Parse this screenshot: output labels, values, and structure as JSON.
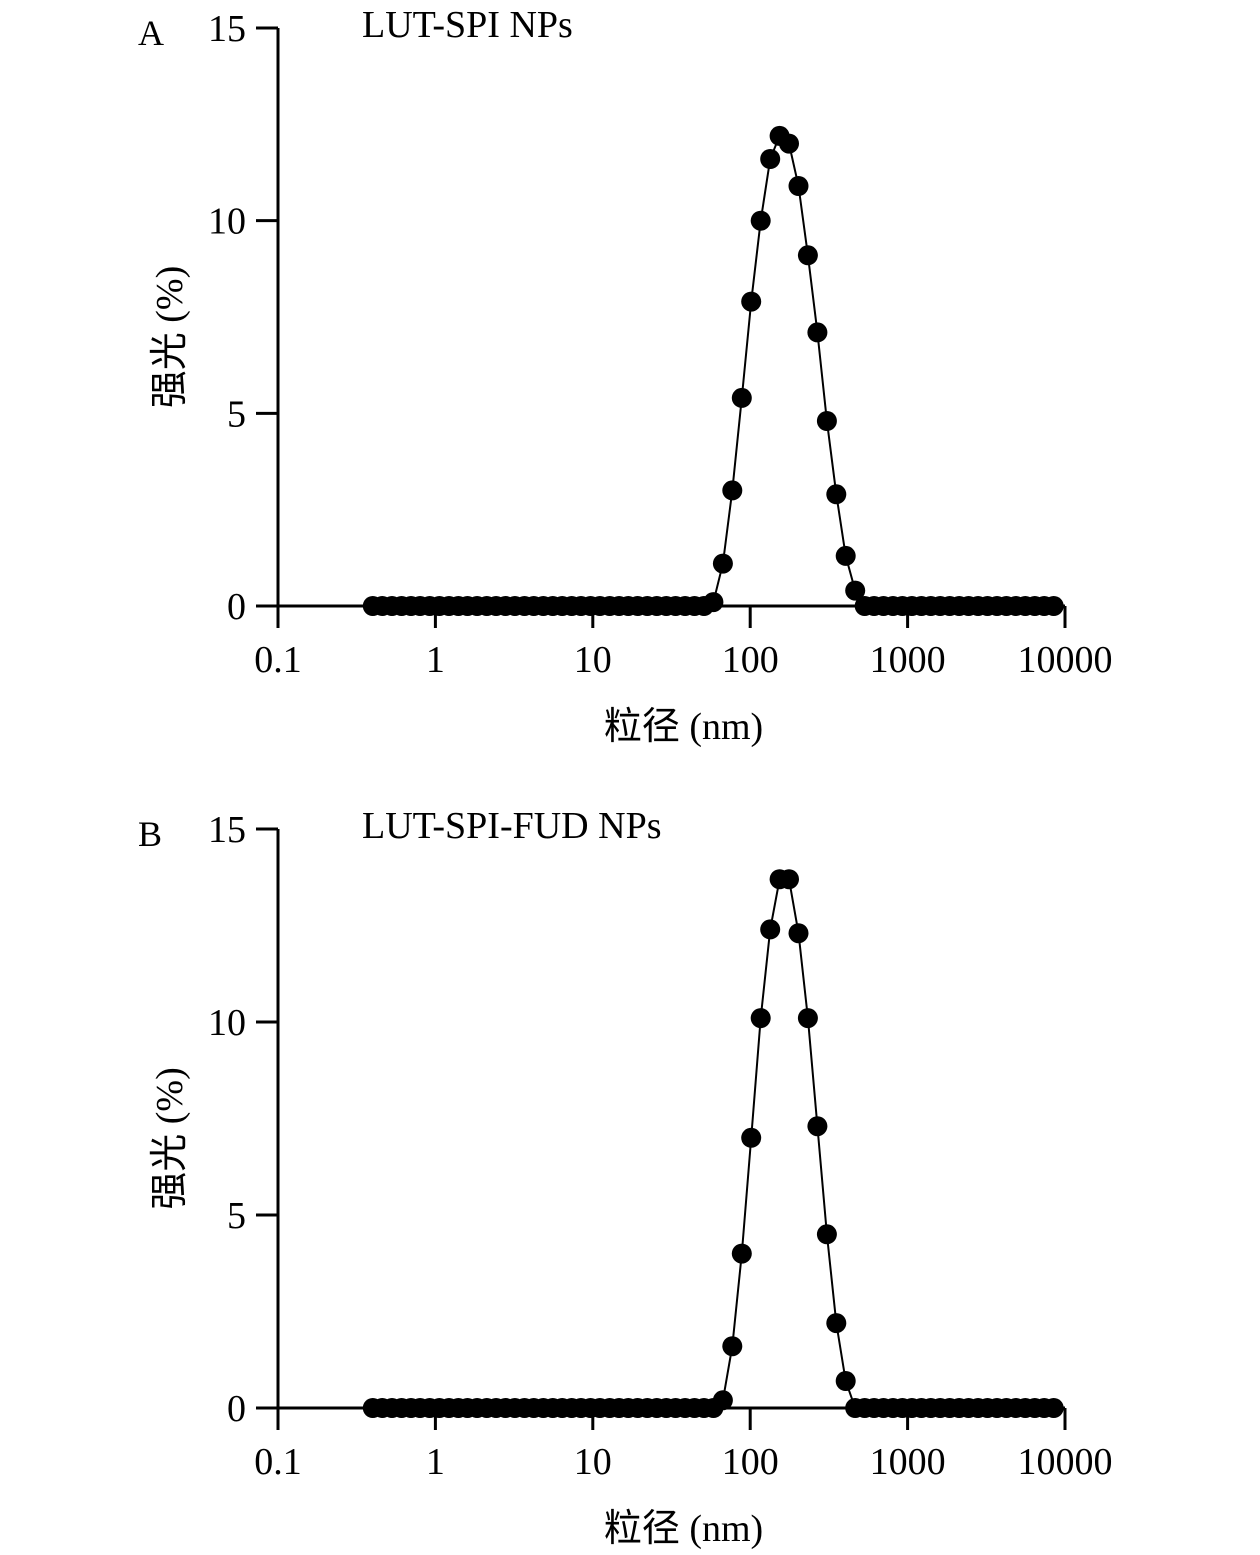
{
  "chart_data": [
    {
      "type": "scatter",
      "panel_label": "A",
      "title": "LUT-SPI NPs",
      "xlabel": "粒径 (nm)",
      "ylabel": "强光 (%)",
      "x_scale": "log",
      "xlim": [
        0.1,
        10000
      ],
      "ylim": [
        0,
        15
      ],
      "x_ticks": [
        0.1,
        1,
        10,
        100,
        1000,
        10000
      ],
      "x_tick_labels": [
        "0.1",
        "1",
        "10",
        "100",
        "1000",
        "10000"
      ],
      "y_ticks": [
        0,
        5,
        10,
        15
      ],
      "y_tick_labels": [
        "0",
        "5",
        "10",
        "15"
      ],
      "grid": false,
      "series": [
        {
          "x": [
            0.4,
            0.46,
            0.53,
            0.61,
            0.7,
            0.8,
            0.92,
            1.06,
            1.22,
            1.4,
            1.6,
            1.84,
            2.12,
            2.43,
            2.79,
            3.2,
            3.68,
            4.22,
            4.85,
            5.57,
            6.39,
            7.34,
            8.42,
            9.67,
            11.1,
            12.8,
            14.7,
            16.8,
            19.3,
            22.2,
            25.5,
            29.3,
            33.6,
            38.6,
            44.3,
            50.9,
            58.4,
            67.1,
            77.0,
            88.4,
            101.5,
            116.6,
            133.9,
            153.7,
            176.5,
            202.7,
            232.7,
            267.2,
            306.9,
            352.4,
            404.6,
            464.6,
            533.5,
            612.6,
            703.4,
            807.7,
            927.4,
            1065,
            1223,
            1404,
            1612,
            1851,
            2126,
            2441,
            2803,
            3219,
            3696,
            4244,
            4873,
            5596,
            6425,
            7378,
            8472
          ],
          "y": [
            0,
            0,
            0,
            0,
            0,
            0,
            0,
            0,
            0,
            0,
            0,
            0,
            0,
            0,
            0,
            0,
            0,
            0,
            0,
            0,
            0,
            0,
            0,
            0,
            0,
            0,
            0,
            0,
            0,
            0,
            0,
            0,
            0,
            0,
            0,
            0,
            0.1,
            1.1,
            3.0,
            5.4,
            7.9,
            10.0,
            11.6,
            12.2,
            12.0,
            10.9,
            9.1,
            7.1,
            4.8,
            2.9,
            1.3,
            0.4,
            0,
            0,
            0,
            0,
            0,
            0,
            0,
            0,
            0,
            0,
            0,
            0,
            0,
            0,
            0,
            0,
            0,
            0,
            0,
            0,
            0
          ]
        }
      ]
    },
    {
      "type": "scatter",
      "panel_label": "B",
      "title": "LUT-SPI-FUD NPs",
      "xlabel": "粒径 (nm)",
      "ylabel": "强光 (%)",
      "x_scale": "log",
      "xlim": [
        0.1,
        10000
      ],
      "ylim": [
        0,
        15
      ],
      "x_ticks": [
        0.1,
        1,
        10,
        100,
        1000,
        10000
      ],
      "x_tick_labels": [
        "0.1",
        "1",
        "10",
        "100",
        "1000",
        "10000"
      ],
      "y_ticks": [
        0,
        5,
        10,
        15
      ],
      "y_tick_labels": [
        "0",
        "5",
        "10",
        "15"
      ],
      "grid": false,
      "series": [
        {
          "x": [
            0.4,
            0.46,
            0.53,
            0.61,
            0.7,
            0.8,
            0.92,
            1.06,
            1.22,
            1.4,
            1.6,
            1.84,
            2.12,
            2.43,
            2.79,
            3.2,
            3.68,
            4.22,
            4.85,
            5.57,
            6.39,
            7.34,
            8.42,
            9.67,
            11.1,
            12.8,
            14.7,
            16.8,
            19.3,
            22.2,
            25.5,
            29.3,
            33.6,
            38.6,
            44.3,
            50.9,
            58.4,
            67.1,
            77.0,
            88.4,
            101.5,
            116.6,
            133.9,
            153.7,
            176.5,
            202.7,
            232.7,
            267.2,
            306.9,
            352.4,
            404.6,
            464.6,
            533.5,
            612.6,
            703.4,
            807.7,
            927.4,
            1065,
            1223,
            1404,
            1612,
            1851,
            2126,
            2441,
            2803,
            3219,
            3696,
            4244,
            4873,
            5596,
            6425,
            7378,
            8472
          ],
          "y": [
            0,
            0,
            0,
            0,
            0,
            0,
            0,
            0,
            0,
            0,
            0,
            0,
            0,
            0,
            0,
            0,
            0,
            0,
            0,
            0,
            0,
            0,
            0,
            0,
            0,
            0,
            0,
            0,
            0,
            0,
            0,
            0,
            0,
            0,
            0,
            0,
            0,
            0.2,
            1.6,
            4.0,
            7.0,
            10.1,
            12.4,
            13.7,
            13.7,
            12.3,
            10.1,
            7.3,
            4.5,
            2.2,
            0.7,
            0,
            0,
            0,
            0,
            0,
            0,
            0,
            0,
            0,
            0,
            0,
            0,
            0,
            0,
            0,
            0,
            0,
            0,
            0,
            0,
            0,
            0
          ]
        }
      ]
    }
  ]
}
